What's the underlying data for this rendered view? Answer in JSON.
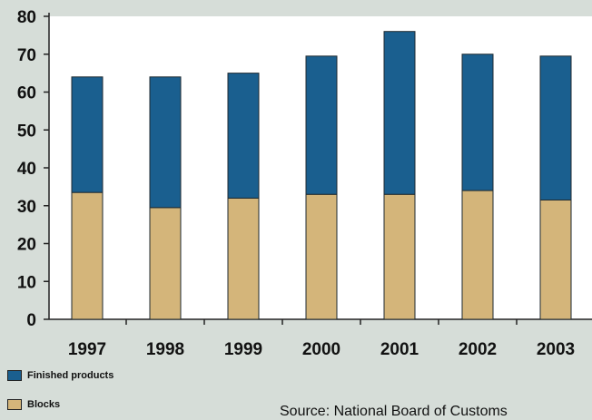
{
  "chart_data": {
    "type": "bar",
    "stacked": true,
    "categories": [
      "1997",
      "1998",
      "1999",
      "2000",
      "2001",
      "2002",
      "2003"
    ],
    "series": [
      {
        "name": "Blocks",
        "color": "#d4b57a",
        "values": [
          33.5,
          29.5,
          32,
          33,
          33,
          34,
          31.5
        ]
      },
      {
        "name": "Finished products",
        "color": "#1a5f8f",
        "values": [
          30.5,
          34.5,
          33,
          36.5,
          43,
          36,
          38
        ]
      }
    ],
    "y_ticks": [
      0,
      10,
      20,
      30,
      40,
      50,
      60,
      70,
      80
    ],
    "ylim": [
      0,
      80
    ],
    "grid": false,
    "legend_position": "bottom-left",
    "title": "",
    "xlabel": "",
    "ylabel": ""
  },
  "source": "Source: National Board of Customs",
  "colors": {
    "background": "#d6ddd8",
    "plot_background": "#ffffff",
    "axis": "#222222"
  }
}
